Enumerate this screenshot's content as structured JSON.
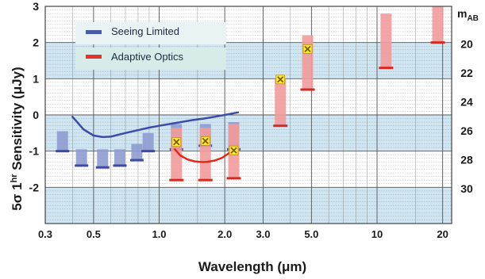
{
  "chart_data": {
    "type": "line",
    "xlabel": "Wavelength (μm)",
    "ylabel": "5σ 1hr Sensitivity (μJy)",
    "ylabel_parts": {
      "sigma": "5σ 1",
      "sup": "hr",
      "rest": " Sensitivity (μJy)"
    },
    "right_axis_label": {
      "main": "m",
      "sub": "AB"
    },
    "x_scale": "log",
    "xlim": [
      0.3,
      22
    ],
    "ylim": [
      -3,
      3
    ],
    "x_ticks": [
      {
        "v": 0.3,
        "label": "0.3"
      },
      {
        "v": 0.5,
        "label": "0.5"
      },
      {
        "v": 1.0,
        "label": "1.0"
      },
      {
        "v": 2.0,
        "label": "2.0"
      },
      {
        "v": 3.0,
        "label": "3.0"
      },
      {
        "v": 5.0,
        "label": "5.0"
      },
      {
        "v": 10,
        "label": "10"
      },
      {
        "v": 20,
        "label": "20"
      }
    ],
    "y_ticks": [
      {
        "v": 3,
        "label": "3"
      },
      {
        "v": 2,
        "label": "2"
      },
      {
        "v": 1,
        "label": "1"
      },
      {
        "v": 0,
        "label": "0"
      },
      {
        "v": -1,
        "label": "-1"
      },
      {
        "v": -2,
        "label": "-2"
      }
    ],
    "right_ticks": [
      {
        "v": 1.96,
        "label": "20"
      },
      {
        "v": 1.16,
        "label": "22"
      },
      {
        "v": 0.36,
        "label": "24"
      },
      {
        "v": -0.44,
        "label": "26"
      },
      {
        "v": -1.24,
        "label": "28"
      },
      {
        "v": -2.04,
        "label": "30"
      }
    ],
    "grid": true,
    "legend": {
      "position": "top-left",
      "items": [
        {
          "name": "Seeing Limited",
          "color": "#4a5aa8"
        },
        {
          "name": "Adaptive Optics",
          "color": "#e0352b"
        }
      ]
    },
    "colors": {
      "band": "#cfe6f2",
      "seeing_bar": "#8e9bd0",
      "seeing_cap": "#3d4aa0",
      "ao_bar": "#f29a9a",
      "ao_cap": "#d42a22",
      "seeing_curve": "#3b4ca8",
      "ao_curve": "#e02a1e",
      "marker_fill": "#ffee33",
      "marker_edge": "#c58a00",
      "grid": "#7a7a7a"
    },
    "series": [
      {
        "name": "Seeing Limited",
        "kind": "range",
        "points": [
          {
            "x": 0.36,
            "low": -1.0,
            "high": -0.45
          },
          {
            "x": 0.44,
            "low": -1.4,
            "high": -0.95
          },
          {
            "x": 0.55,
            "low": -1.45,
            "high": -0.95
          },
          {
            "x": 0.66,
            "low": -1.4,
            "high": -0.95
          },
          {
            "x": 0.79,
            "low": -1.25,
            "high": -0.8
          },
          {
            "x": 0.89,
            "low": -1.0,
            "high": -0.5
          },
          {
            "x": 1.2,
            "low": -0.95,
            "high": -0.25
          },
          {
            "x": 1.63,
            "low": -0.85,
            "high": -0.25
          },
          {
            "x": 2.2,
            "low": -0.95,
            "high": -0.2
          }
        ]
      },
      {
        "name": "Adaptive Optics",
        "kind": "range",
        "points": [
          {
            "x": 1.2,
            "low": -1.8,
            "high": -0.35
          },
          {
            "x": 1.63,
            "low": -1.8,
            "high": -0.35
          },
          {
            "x": 2.2,
            "low": -1.75,
            "high": -0.25
          },
          {
            "x": 3.6,
            "low": -0.3,
            "high": 1.0
          },
          {
            "x": 4.8,
            "low": 0.7,
            "high": 2.2
          },
          {
            "x": 11.0,
            "low": 1.3,
            "high": 2.8
          },
          {
            "x": 19.0,
            "low": 2.0,
            "high": 3.0
          }
        ]
      },
      {
        "name": "Seeing Limited curve",
        "kind": "curve",
        "x": [
          0.4,
          0.45,
          0.5,
          0.55,
          0.6,
          0.7,
          0.8,
          0.9,
          1.0,
          1.2,
          1.4,
          1.6,
          1.8,
          2.0,
          2.3
        ],
        "y": [
          -0.05,
          -0.4,
          -0.57,
          -0.61,
          -0.6,
          -0.5,
          -0.42,
          -0.35,
          -0.3,
          -0.22,
          -0.15,
          -0.1,
          -0.05,
          0.0,
          0.07
        ]
      },
      {
        "name": "Adaptive Optics curve",
        "kind": "curve",
        "x": [
          1.18,
          1.25,
          1.35,
          1.45,
          1.55,
          1.65,
          1.8,
          1.95,
          2.1,
          2.2
        ],
        "y": [
          -0.95,
          -1.12,
          -1.23,
          -1.28,
          -1.3,
          -1.3,
          -1.26,
          -1.18,
          -1.05,
          -0.95
        ]
      },
      {
        "name": "Markers",
        "kind": "marker",
        "points": [
          {
            "x": 1.2,
            "y": -0.75
          },
          {
            "x": 1.63,
            "y": -0.72
          },
          {
            "x": 2.2,
            "y": -0.98
          },
          {
            "x": 3.6,
            "y": 0.98
          },
          {
            "x": 4.8,
            "y": 1.82
          }
        ]
      }
    ]
  }
}
